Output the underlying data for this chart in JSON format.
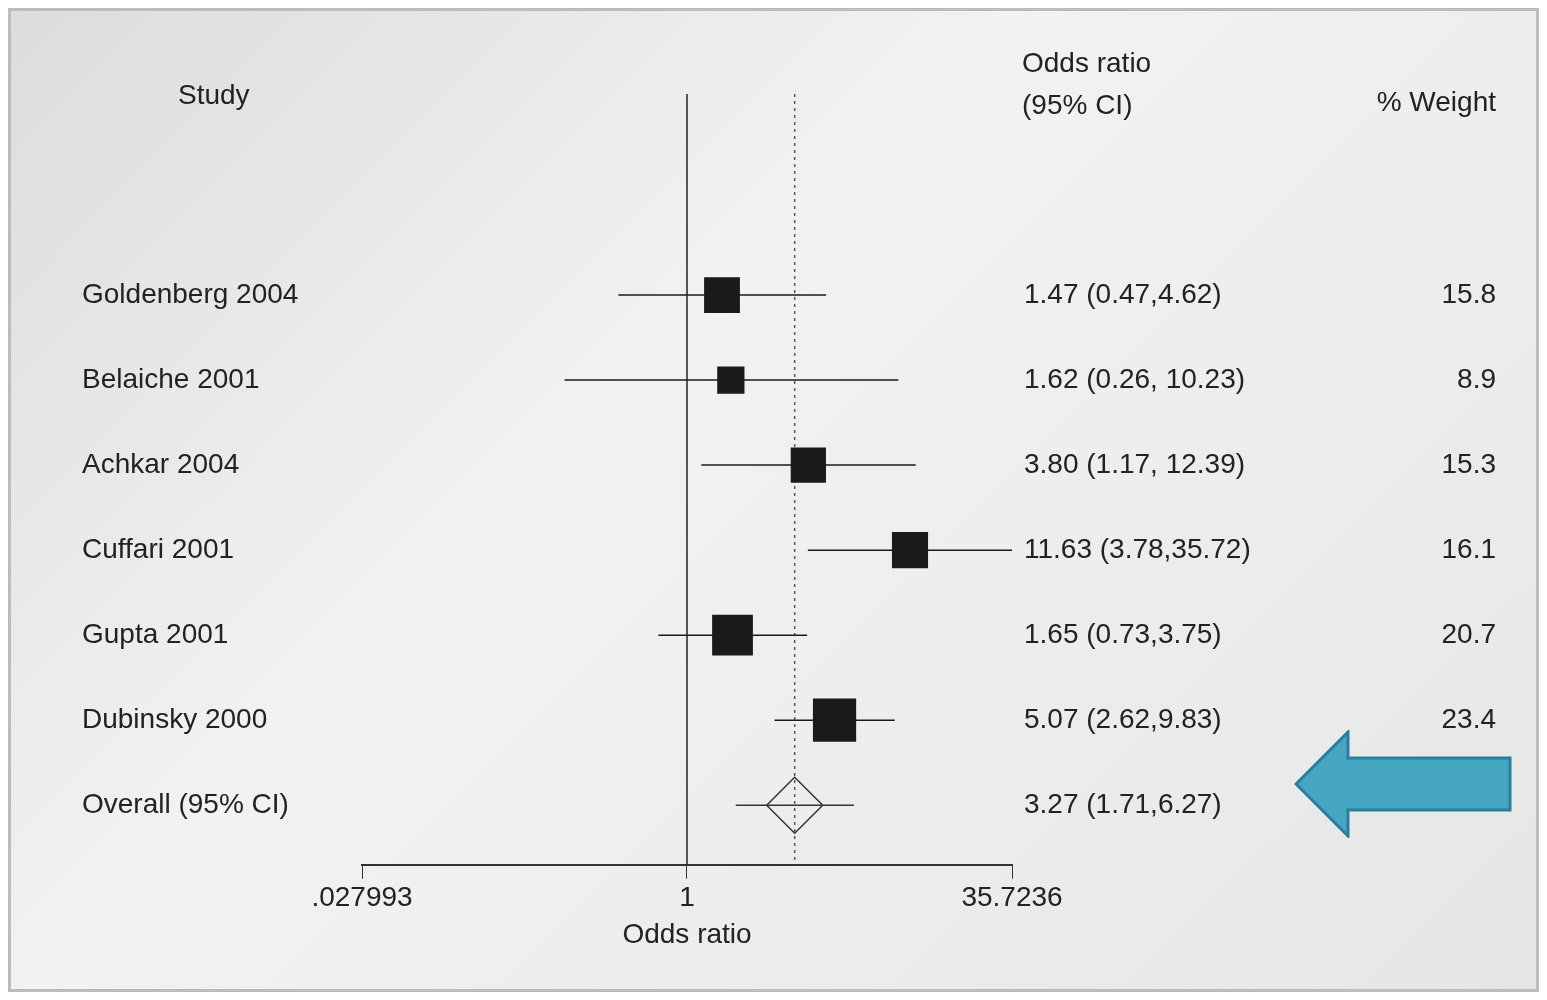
{
  "chart_data": {
    "type": "scatter",
    "orientation": "horizontal",
    "xlabel": "Odds ratio",
    "categories": [
      "Goldenberg 2004",
      "Belaiche 2001",
      "Achkar 2004",
      "Cuffari 2001",
      "Gupta 2001",
      "Dubinsky 2000",
      "Overall (95% CI)"
    ],
    "xlim": [
      0.027993,
      35.7236
    ],
    "xticks": [
      {
        "value": 0.027993,
        "label": ".027993"
      },
      1,
      35.7236
    ],
    "log": "x",
    "grid": false,
    "ref_lines": [
      {
        "axis": "x",
        "value": 1,
        "line_style": "solid",
        "color": "#222222"
      },
      {
        "axis": "x",
        "value": 3.27,
        "line_style": "dotted",
        "color": "#555555"
      }
    ],
    "annotations": [
      "Study",
      "Odds ratio\n(95% CI)",
      "% Weight",
      "1.47 (0.47,4.62)",
      "15.8",
      "1.62 (0.26, 10.23)",
      "8.9",
      "3.80 (1.17, 12.39)",
      "15.3",
      "11.63 (3.78,35.72)",
      "16.1",
      "1.65 (0.73,3.75)",
      "20.7",
      "5.07 (2.62,9.83)",
      "23.4",
      "3.27 (1.71,6.27)"
    ],
    "series": [
      {
        "type": "bubble",
        "marker": "square",
        "color": "#1a1a1a",
        "values": [
          1.47,
          1.62,
          3.8,
          11.63,
          1.65,
          5.07,
          null
        ],
        "errors": [
          [
            0.47,
            4.62
          ],
          [
            0.26,
            10.23
          ],
          [
            1.17,
            12.39
          ],
          [
            3.78,
            35.72
          ],
          [
            0.73,
            3.75
          ],
          [
            2.62,
            9.83
          ],
          null
        ],
        "sizes": [
          0.675,
          0.38,
          0.654,
          0.688,
          0.885,
          1,
          null
        ]
      },
      {
        "type": "scatter",
        "marker": "diamond",
        "color": "#333333",
        "values": [
          null,
          null,
          null,
          null,
          null,
          null,
          3.27
        ],
        "errors": [
          null,
          null,
          null,
          null,
          null,
          null,
          [
            1.71,
            6.27
          ]
        ]
      }
    ]
  }
}
